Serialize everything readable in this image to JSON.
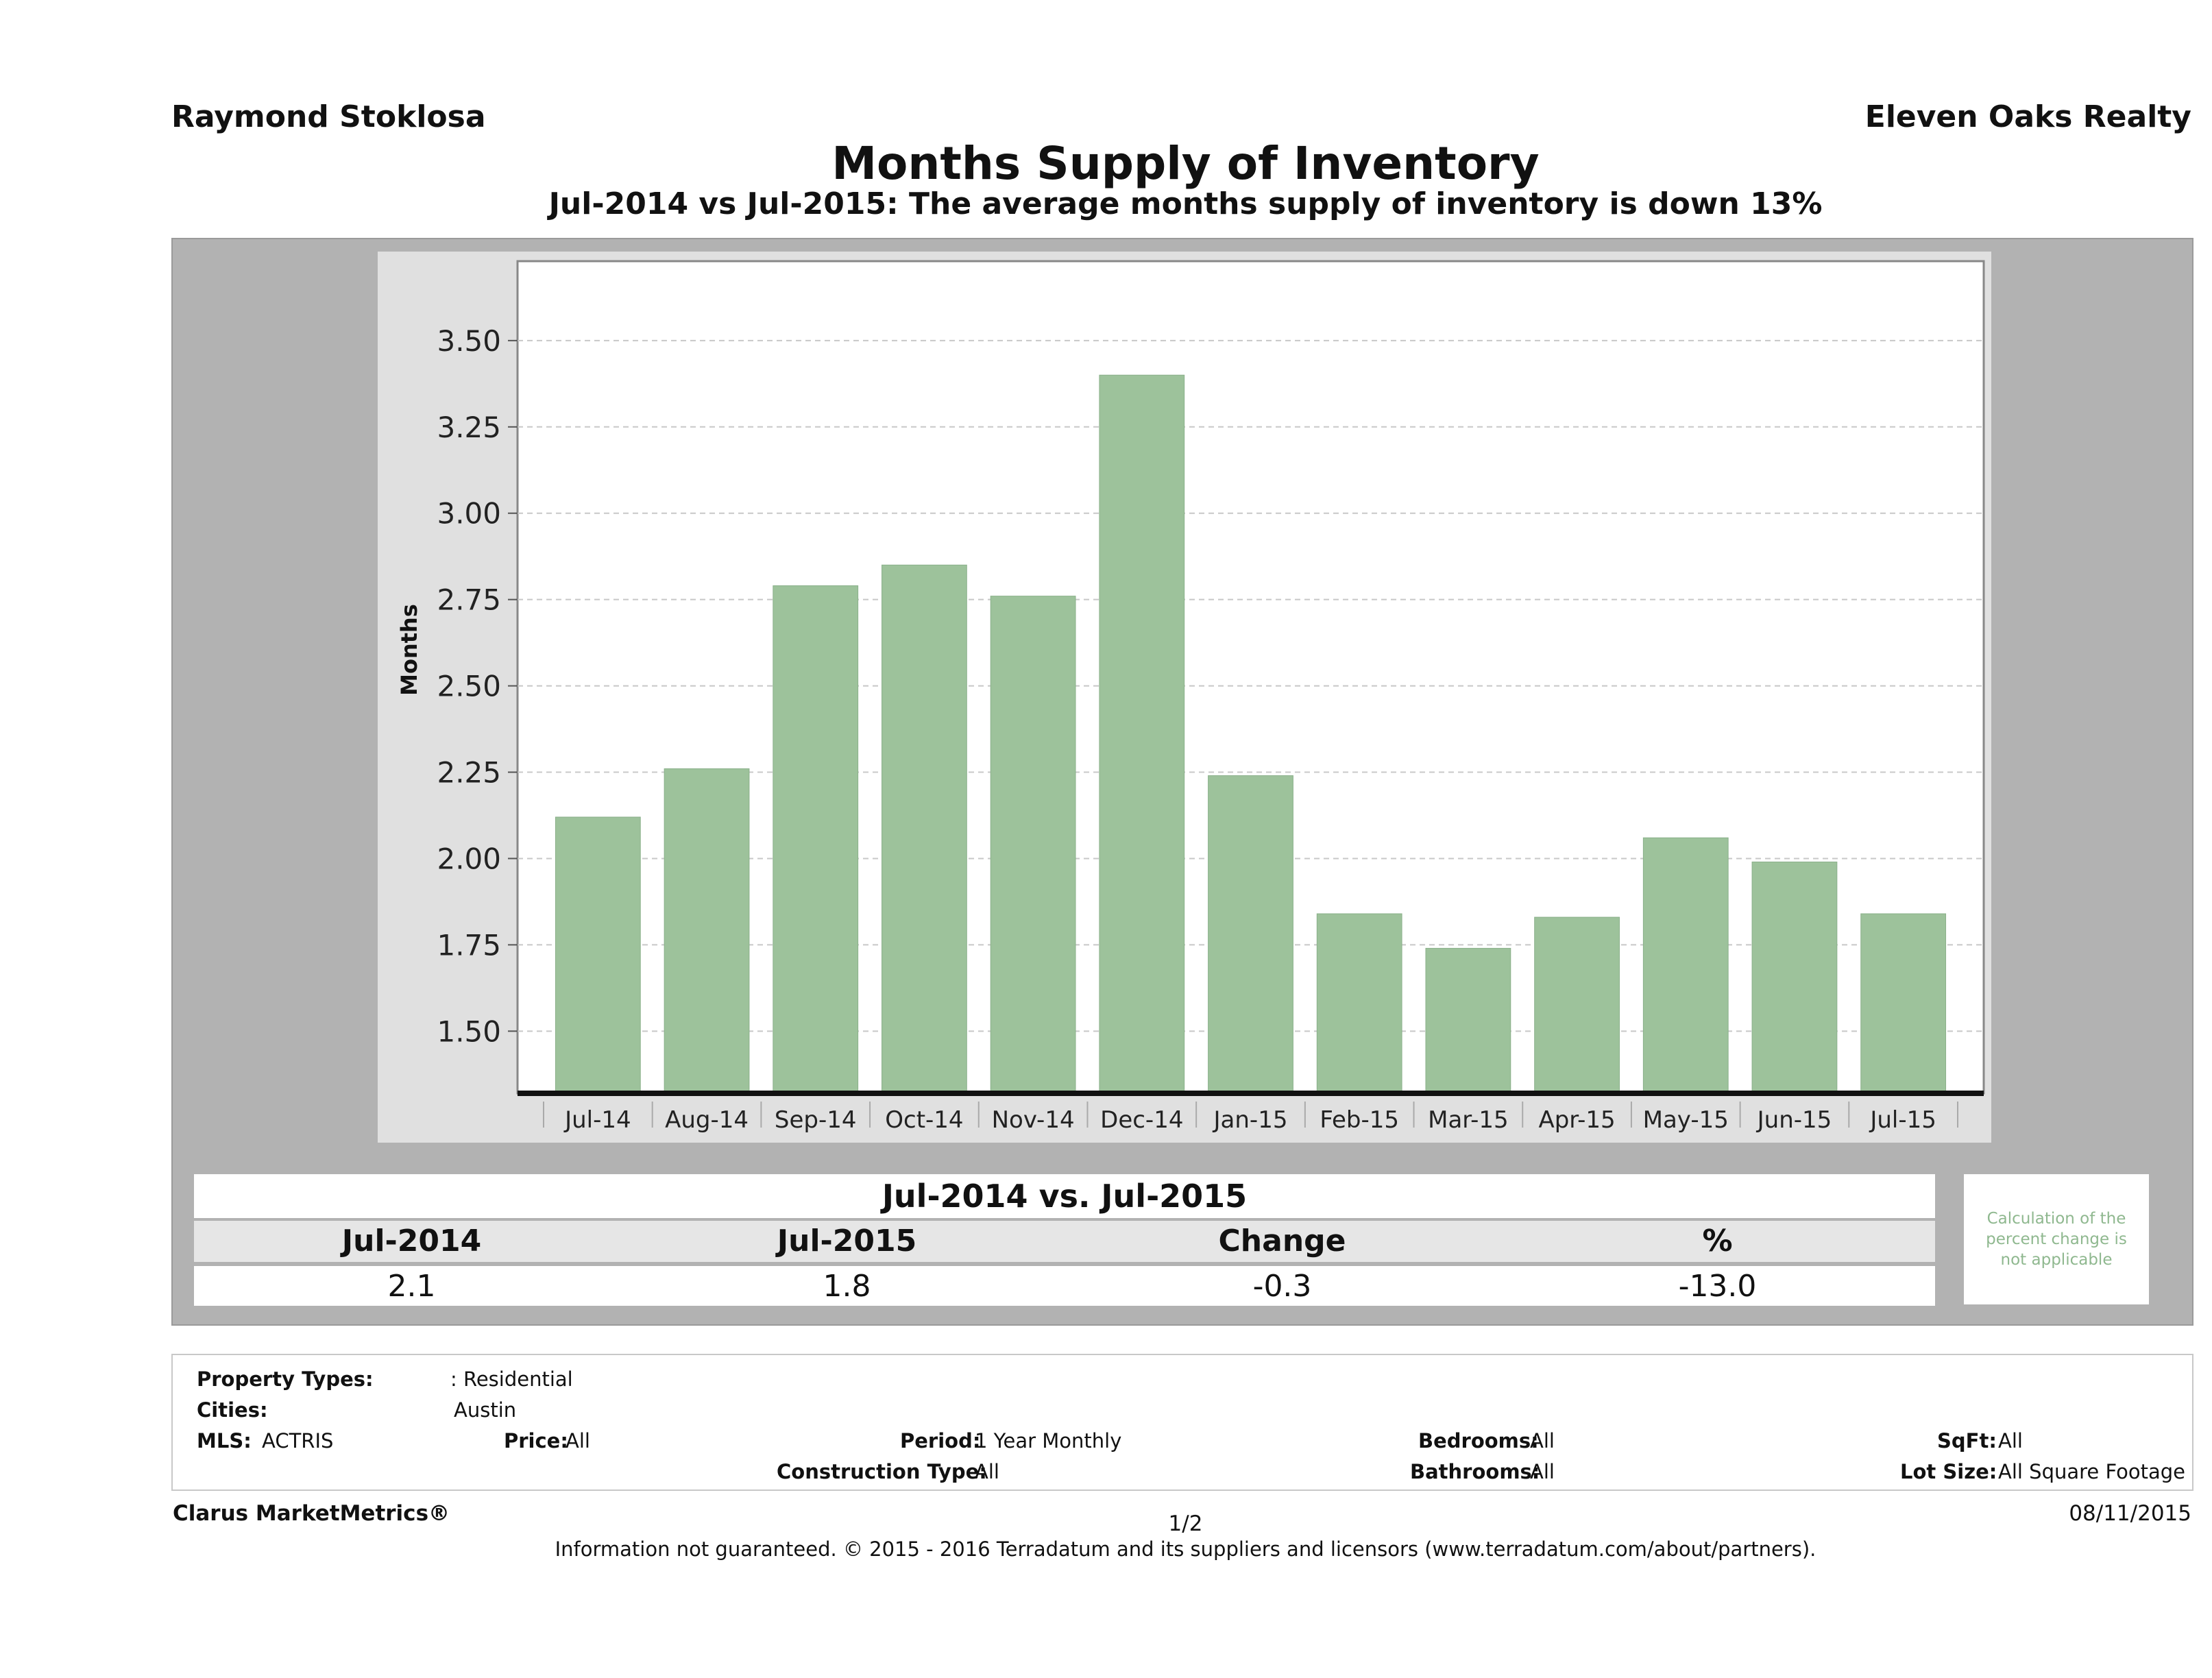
{
  "header": {
    "agent": "Raymond Stoklosa",
    "company": "Eleven Oaks Realty"
  },
  "chart_data": {
    "type": "bar",
    "title": "Months Supply of Inventory",
    "subtitle": "Jul-2014 vs Jul-2015: The average months supply of inventory is down 13%",
    "ylabel": "Months",
    "xlabel": "",
    "categories": [
      "Jul-14",
      "Aug-14",
      "Sep-14",
      "Oct-14",
      "Nov-14",
      "Dec-14",
      "Jan-15",
      "Feb-15",
      "Mar-15",
      "Apr-15",
      "May-15",
      "Jun-15",
      "Jul-15"
    ],
    "values": [
      2.12,
      2.26,
      2.79,
      2.85,
      2.76,
      3.4,
      2.24,
      1.84,
      1.74,
      1.83,
      2.06,
      1.99,
      1.84
    ],
    "ylim": [
      1.32,
      3.73
    ],
    "yticks": [
      "1.50",
      "1.75",
      "2.00",
      "2.25",
      "2.50",
      "2.75",
      "3.00",
      "3.25",
      "3.50"
    ],
    "grid": true,
    "bar_color": "#9dc29b"
  },
  "summary": {
    "heading": "Jul-2014 vs. Jul-2015",
    "columns": [
      "Jul-2014",
      "Jul-2015",
      "Change",
      "%"
    ],
    "values": [
      "2.1",
      "1.8",
      "-0.3",
      "-13.0"
    ],
    "note": "Calculation of the percent change is not applicable"
  },
  "filters": {
    "property_types_label": "Property Types:",
    "property_types_value": ": Residential",
    "cities_label": "Cities:",
    "cities_value": "Austin",
    "mls_label": "MLS:",
    "mls_value": "ACTRIS",
    "price_label": "Price:",
    "price_value": "All",
    "period_label": "Period:",
    "period_value": "1 Year Monthly",
    "bedrooms_label": "Bedrooms:",
    "bedrooms_value": "All",
    "sqft_label": "SqFt:",
    "sqft_value": "All",
    "construction_label": "Construction Type:",
    "construction_value": "All",
    "bathrooms_label": "Bathrooms:",
    "bathrooms_value": "All",
    "lot_label": "Lot Size:",
    "lot_value": "All Square Footage"
  },
  "footer": {
    "brand": "Clarus MarketMetrics®",
    "page": "1/2",
    "date": "08/11/2015",
    "disclaimer": "Information not guaranteed. © 2015 - 2016 Terradatum and its suppliers and licensors (www.terradatum.com/about/partners)."
  }
}
